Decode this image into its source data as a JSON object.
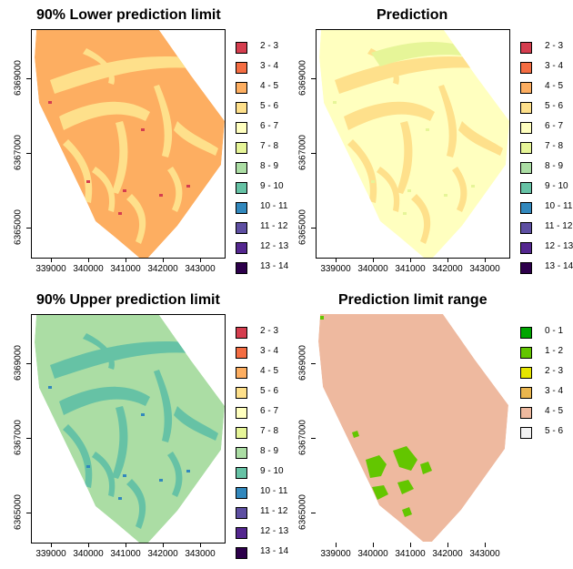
{
  "panels": [
    {
      "title": "90% Lower prediction limit",
      "legend": [
        {
          "label": "2 - 3",
          "color": "#d53e4f"
        },
        {
          "label": "3 - 4",
          "color": "#f46d43"
        },
        {
          "label": "4 - 5",
          "color": "#fdae61"
        },
        {
          "label": "5 - 6",
          "color": "#fee08b"
        },
        {
          "label": "6 - 7",
          "color": "#ffffbf"
        },
        {
          "label": "7 - 8",
          "color": "#e6f598"
        },
        {
          "label": "8 - 9",
          "color": "#abdda4"
        },
        {
          "label": "9 - 10",
          "color": "#66c2a5"
        },
        {
          "label": "10 - 11",
          "color": "#3288bd"
        },
        {
          "label": "11 - 12",
          "color": "#5e4fa2"
        },
        {
          "label": "12 - 13",
          "color": "#54278f"
        },
        {
          "label": "13 - 14",
          "color": "#2d004b"
        }
      ],
      "base_color": "#fdae61",
      "pattern_color": "#fee08b",
      "accent_color": "#d53e4f"
    },
    {
      "title": "Prediction",
      "legend": [
        {
          "label": "2 - 3",
          "color": "#d53e4f"
        },
        {
          "label": "3 - 4",
          "color": "#f46d43"
        },
        {
          "label": "4 - 5",
          "color": "#fdae61"
        },
        {
          "label": "5 - 6",
          "color": "#fee08b"
        },
        {
          "label": "6 - 7",
          "color": "#ffffbf"
        },
        {
          "label": "7 - 8",
          "color": "#e6f598"
        },
        {
          "label": "8 - 9",
          "color": "#abdda4"
        },
        {
          "label": "9 - 10",
          "color": "#66c2a5"
        },
        {
          "label": "10 - 11",
          "color": "#3288bd"
        },
        {
          "label": "11 - 12",
          "color": "#5e4fa2"
        },
        {
          "label": "12 - 13",
          "color": "#54278f"
        },
        {
          "label": "13 - 14",
          "color": "#2d004b"
        }
      ],
      "base_color": "#ffffbf",
      "pattern_color": "#fee08b",
      "accent_color": "#e6f598"
    },
    {
      "title": "90% Upper prediction limit",
      "legend": [
        {
          "label": "2 - 3",
          "color": "#d53e4f"
        },
        {
          "label": "3 - 4",
          "color": "#f46d43"
        },
        {
          "label": "4 - 5",
          "color": "#fdae61"
        },
        {
          "label": "5 - 6",
          "color": "#fee08b"
        },
        {
          "label": "6 - 7",
          "color": "#ffffbf"
        },
        {
          "label": "7 - 8",
          "color": "#e6f598"
        },
        {
          "label": "8 - 9",
          "color": "#abdda4"
        },
        {
          "label": "9 - 10",
          "color": "#66c2a5"
        },
        {
          "label": "10 - 11",
          "color": "#3288bd"
        },
        {
          "label": "11 - 12",
          "color": "#5e4fa2"
        },
        {
          "label": "12 - 13",
          "color": "#54278f"
        },
        {
          "label": "13 - 14",
          "color": "#2d004b"
        }
      ],
      "base_color": "#abdda4",
      "pattern_color": "#66c2a5",
      "accent_color": "#3288bd"
    },
    {
      "title": "Prediction limit range",
      "legend": [
        {
          "label": "0 - 1",
          "color": "#00a600"
        },
        {
          "label": "1 - 2",
          "color": "#63c600"
        },
        {
          "label": "2 - 3",
          "color": "#e6e600"
        },
        {
          "label": "3 - 4",
          "color": "#eab64e"
        },
        {
          "label": "4 - 5",
          "color": "#eeb99f"
        },
        {
          "label": "5 - 6",
          "color": "#f2f2f2"
        }
      ],
      "base_color": "#eeb99f",
      "pattern_color": "#63c600",
      "accent_color": "#00a600"
    }
  ],
  "x_ticks": [
    "339000",
    "340000",
    "341000",
    "342000",
    "343000"
  ],
  "y_ticks": [
    "6365000",
    "6367000",
    "6369000"
  ]
}
